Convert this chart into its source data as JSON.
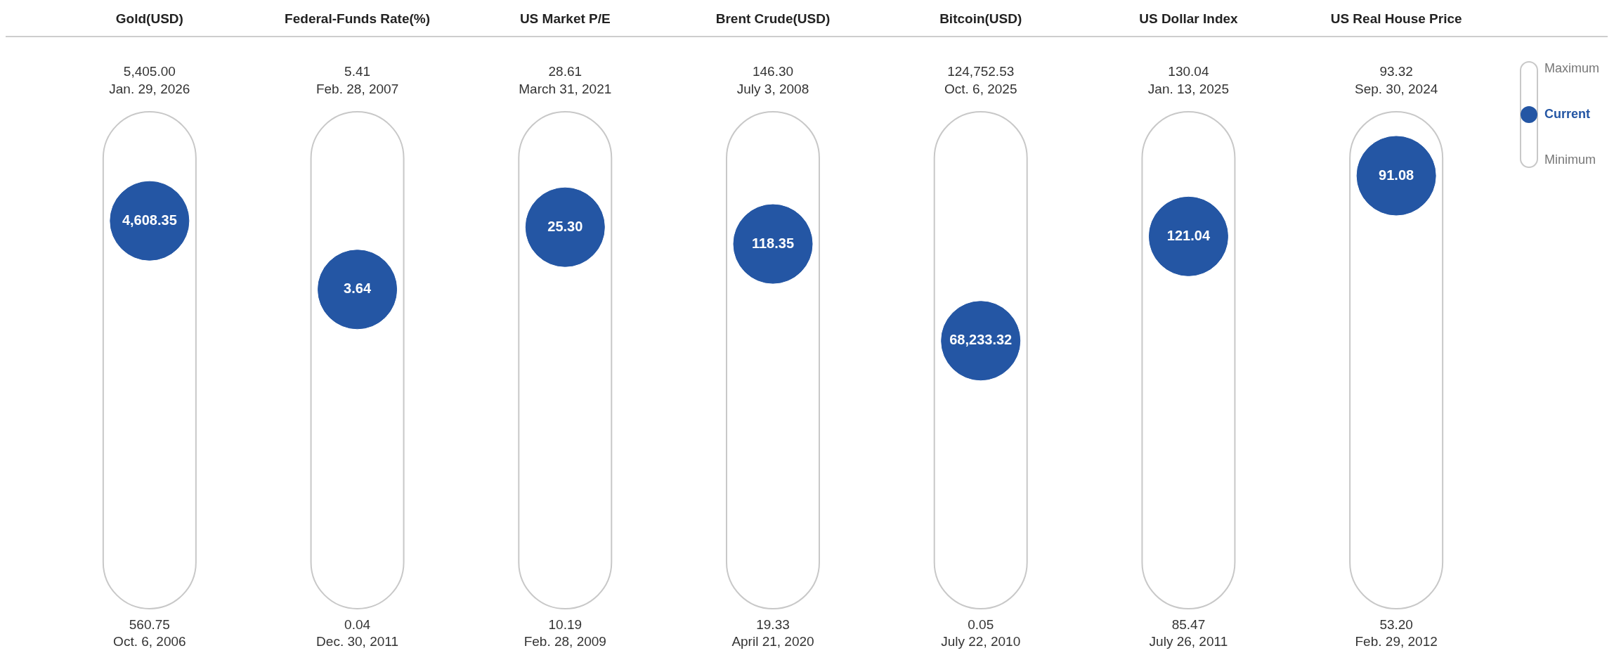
{
  "chart_data": {
    "type": "other",
    "categories": [
      "Gold(USD)",
      "Federal-Funds Rate(%)",
      "US Market P/E",
      "Brent Crude(USD)",
      "Bitcoin(USD)",
      "US Dollar Index",
      "US Real House Price"
    ],
    "series": [
      {
        "name": "Maximum",
        "values": [
          5405.0,
          5.41,
          28.61,
          146.3,
          124752.53,
          130.04,
          93.32
        ],
        "value_labels": [
          "5,405.00",
          "5.41",
          "28.61",
          "146.30",
          "124,752.53",
          "130.04",
          "93.32"
        ]
      },
      {
        "name": "Current",
        "color": "#2456a4",
        "values": [
          4608.35,
          3.64,
          25.3,
          118.35,
          68233.32,
          121.04,
          91.08
        ],
        "value_labels": [
          "4,608.35",
          "3.64",
          "25.30",
          "118.35",
          "68,233.32",
          "121.04",
          "91.08"
        ]
      },
      {
        "name": "Minimum",
        "values": [
          560.75,
          0.04,
          10.19,
          19.33,
          0.05,
          85.47,
          53.2
        ],
        "value_labels": [
          "560.75",
          "0.04",
          "10.19",
          "19.33",
          "0.05",
          "85.47",
          "53.20"
        ]
      }
    ],
    "annotations": [
      "Jan. 29, 2026",
      "Oct. 6, 2006",
      "Feb. 28, 2007",
      "Dec. 30, 2011",
      "March 31, 2021",
      "Feb. 28, 2009",
      "July 3, 2008",
      "April 21, 2020",
      "Oct. 6, 2025",
      "July 22, 2010",
      "Jan. 13, 2025",
      "July 26, 2011",
      "Sep. 30, 2024",
      "Feb. 29, 2012"
    ],
    "legend": "top right"
  }
}
